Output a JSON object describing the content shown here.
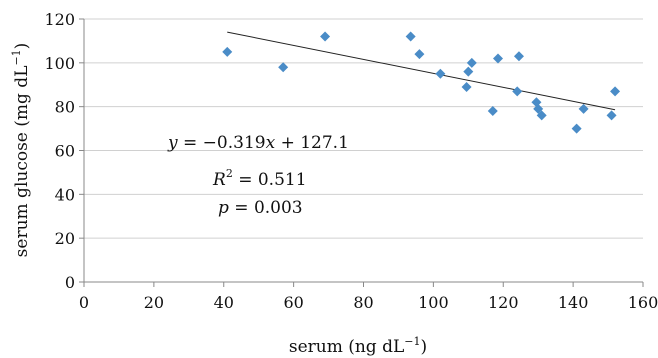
{
  "chart_data": {
    "type": "scatter",
    "xlabel": "serum (ng dL",
    "xlabel_sup": "−1",
    "xlabel_tail": ")",
    "ylabel": "serum glucose (mg dL",
    "ylabel_sup": "−1",
    "ylabel_tail": ")",
    "xlim": [
      0,
      160
    ],
    "ylim": [
      0,
      120
    ],
    "xticks": [
      0,
      20,
      40,
      60,
      80,
      100,
      120,
      140,
      160
    ],
    "yticks": [
      0,
      20,
      40,
      60,
      80,
      100,
      120
    ],
    "grid": "horizontal",
    "marker_color": "#4a8cc7",
    "points": [
      {
        "x": 41,
        "y": 105
      },
      {
        "x": 57,
        "y": 98
      },
      {
        "x": 69,
        "y": 112
      },
      {
        "x": 93.5,
        "y": 112
      },
      {
        "x": 96,
        "y": 104
      },
      {
        "x": 102,
        "y": 95
      },
      {
        "x": 109.5,
        "y": 89
      },
      {
        "x": 110,
        "y": 96
      },
      {
        "x": 111,
        "y": 100
      },
      {
        "x": 117,
        "y": 78
      },
      {
        "x": 118.5,
        "y": 102
      },
      {
        "x": 124,
        "y": 87
      },
      {
        "x": 124.5,
        "y": 103
      },
      {
        "x": 129.5,
        "y": 82
      },
      {
        "x": 130,
        "y": 79
      },
      {
        "x": 131,
        "y": 76
      },
      {
        "x": 141,
        "y": 70
      },
      {
        "x": 143,
        "y": 79
      },
      {
        "x": 151,
        "y": 76
      },
      {
        "x": 152,
        "y": 87
      }
    ],
    "trendline": {
      "slope": -0.319,
      "intercept": 127.1,
      "x_start": 41,
      "x_end": 152
    },
    "annotations": {
      "equation_y": "y",
      "equation_x": "x",
      "equation_pre": " = −0.319",
      "equation_post": " + 127.1",
      "r2_label": "R",
      "r2_sup": "2",
      "r2_value": " = 0.511",
      "p_label": "p",
      "p_value": " = 0.003"
    }
  }
}
